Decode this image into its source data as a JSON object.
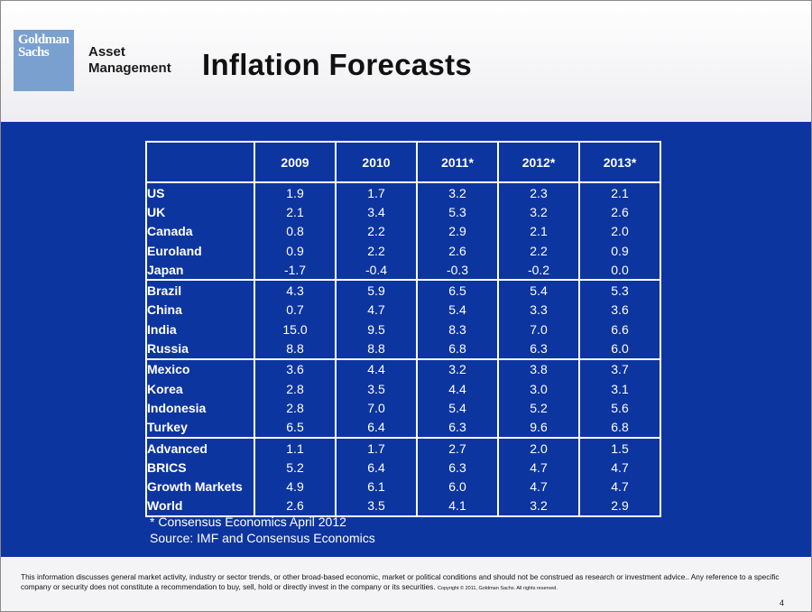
{
  "logo": {
    "line1": "Goldman",
    "line2": "Sachs"
  },
  "brand": {
    "line1": "Asset",
    "line2": "Management"
  },
  "title": "Inflation Forecasts",
  "table": {
    "headers": [
      "",
      "2009",
      "2010",
      "2011*",
      "2012*",
      "2013*"
    ],
    "groups": [
      [
        {
          "country": "US",
          "values": [
            "1.9",
            "1.7",
            "3.2",
            "2.3",
            "2.1"
          ]
        },
        {
          "country": "UK",
          "values": [
            "2.1",
            "3.4",
            "5.3",
            "3.2",
            "2.6"
          ]
        },
        {
          "country": "Canada",
          "values": [
            "0.8",
            "2.2",
            "2.9",
            "2.1",
            "2.0"
          ]
        },
        {
          "country": "Euroland",
          "values": [
            "0.9",
            "2.2",
            "2.6",
            "2.2",
            "0.9"
          ]
        },
        {
          "country": "Japan",
          "values": [
            "-1.7",
            "-0.4",
            "-0.3",
            "-0.2",
            "0.0"
          ]
        }
      ],
      [
        {
          "country": "Brazil",
          "values": [
            "4.3",
            "5.9",
            "6.5",
            "5.4",
            "5.3"
          ]
        },
        {
          "country": "China",
          "values": [
            "0.7",
            "4.7",
            "5.4",
            "3.3",
            "3.6"
          ]
        },
        {
          "country": "India",
          "values": [
            "15.0",
            "9.5",
            "8.3",
            "7.0",
            "6.6"
          ]
        },
        {
          "country": "Russia",
          "values": [
            "8.8",
            "8.8",
            "6.8",
            "6.3",
            "6.0"
          ]
        }
      ],
      [
        {
          "country": "Mexico",
          "values": [
            "3.6",
            "4.4",
            "3.2",
            "3.8",
            "3.7"
          ]
        },
        {
          "country": "Korea",
          "values": [
            "2.8",
            "3.5",
            "4.4",
            "3.0",
            "3.1"
          ]
        },
        {
          "country": "Indonesia",
          "values": [
            "2.8",
            "7.0",
            "5.4",
            "5.2",
            "5.6"
          ]
        },
        {
          "country": "Turkey",
          "values": [
            "6.5",
            "6.4",
            "6.3",
            "9.6",
            "6.8"
          ]
        }
      ],
      [
        {
          "country": "Advanced",
          "values": [
            "1.1",
            "1.7",
            "2.7",
            "2.0",
            "1.5"
          ]
        },
        {
          "country": "BRICS",
          "values": [
            "5.2",
            "6.4",
            "6.3",
            "4.7",
            "4.7"
          ]
        },
        {
          "country": "Growth Markets",
          "values": [
            "4.9",
            "6.1",
            "6.0",
            "4.7",
            "4.7"
          ]
        },
        {
          "country": "World",
          "values": [
            "2.6",
            "3.5",
            "4.1",
            "3.2",
            "2.9"
          ]
        }
      ]
    ]
  },
  "notes": {
    "footnote": "* Consensus Economics April 2012",
    "source": "Source: IMF and Consensus Economics"
  },
  "disclaimer": {
    "text": "This information discusses general market activity, industry or sector trends, or other broad-based economic, market or political conditions and should not be construed as research or investment advice.. Any reference to a specific company or security does not constitute a recommendation to buy, sell, hold or directly invest in the company or its securities.",
    "copyright": "Copyright © 2011, Goldman Sachs. All rights reserved."
  },
  "page_number": "4",
  "colors": {
    "background": "#0d35a0",
    "label": "#ffff33",
    "logo": "#7aa0cf"
  }
}
